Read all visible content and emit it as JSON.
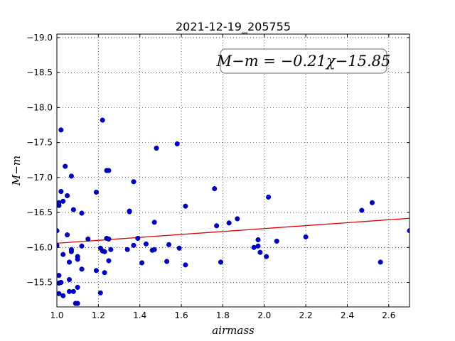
{
  "chart_data": {
    "type": "scatter",
    "title": "2021-12-19_205755",
    "xlabel": "airmass",
    "ylabel": "M−m",
    "xlim": [
      1.0,
      2.7
    ],
    "ylim": [
      -19.05,
      -15.15
    ],
    "y_inverted": true,
    "grid": true,
    "x_ticks": [
      1.0,
      1.2,
      1.4,
      1.6,
      1.8,
      2.0,
      2.2,
      2.4,
      2.6
    ],
    "x_tick_labels": [
      "1.0",
      "1.2",
      "1.4",
      "1.6",
      "1.8",
      "2.0",
      "2.2",
      "2.4",
      "2.6"
    ],
    "y_ticks": [
      -15.5,
      -16.0,
      -16.5,
      -17.0,
      -17.5,
      -18.0,
      -18.5,
      -19.0
    ],
    "y_tick_labels": [
      "−15.5",
      "−16.0",
      "−16.5",
      "−17.0",
      "−17.5",
      "−18.0",
      "−18.5",
      "−19.0"
    ],
    "annotation": "M−m = −0.21χ−15.85",
    "point_color": "#0000cc",
    "fit_color": "#dd0000",
    "fit_line": {
      "slope": -0.21,
      "intercept": -15.85,
      "x_range": [
        1.0,
        2.7
      ]
    },
    "points": [
      [
        1.0,
        -16.03
      ],
      [
        1.0,
        -16.24
      ],
      [
        1.01,
        -15.34
      ],
      [
        1.01,
        -15.49
      ],
      [
        1.01,
        -15.6
      ],
      [
        1.01,
        -16.6
      ],
      [
        1.01,
        -16.64
      ],
      [
        1.02,
        -16.8
      ],
      [
        1.02,
        -17.68
      ],
      [
        1.02,
        -15.5
      ],
      [
        1.03,
        -15.9
      ],
      [
        1.03,
        -15.31
      ],
      [
        1.03,
        -16.66
      ],
      [
        1.04,
        -17.16
      ],
      [
        1.05,
        -16.18
      ],
      [
        1.05,
        -16.74
      ],
      [
        1.06,
        -15.37
      ],
      [
        1.06,
        -15.54
      ],
      [
        1.06,
        -15.79
      ],
      [
        1.07,
        -15.94
      ],
      [
        1.07,
        -15.97
      ],
      [
        1.07,
        -17.02
      ],
      [
        1.08,
        -15.37
      ],
      [
        1.08,
        -16.54
      ],
      [
        1.09,
        -15.2
      ],
      [
        1.1,
        -15.2
      ],
      [
        1.1,
        -15.43
      ],
      [
        1.1,
        -15.87
      ],
      [
        1.1,
        -15.83
      ],
      [
        1.12,
        -15.69
      ],
      [
        1.12,
        -16.02
      ],
      [
        1.12,
        -16.49
      ],
      [
        1.15,
        -16.12
      ],
      [
        1.19,
        -15.67
      ],
      [
        1.19,
        -16.79
      ],
      [
        1.21,
        -15.35
      ],
      [
        1.21,
        -15.99
      ],
      [
        1.22,
        -15.95
      ],
      [
        1.22,
        -17.82
      ],
      [
        1.23,
        -15.64
      ],
      [
        1.23,
        -15.94
      ],
      [
        1.24,
        -17.1
      ],
      [
        1.24,
        -16.13
      ],
      [
        1.25,
        -16.12
      ],
      [
        1.25,
        -15.81
      ],
      [
        1.25,
        -17.1
      ],
      [
        1.26,
        -15.97
      ],
      [
        1.34,
        -15.97
      ],
      [
        1.35,
        -16.51
      ],
      [
        1.35,
        -16.52
      ],
      [
        1.37,
        -16.03
      ],
      [
        1.37,
        -16.94
      ],
      [
        1.39,
        -16.13
      ],
      [
        1.41,
        -15.78
      ],
      [
        1.43,
        -16.05
      ],
      [
        1.46,
        -15.96
      ],
      [
        1.47,
        -15.97
      ],
      [
        1.47,
        -16.36
      ],
      [
        1.48,
        -17.42
      ],
      [
        1.53,
        -15.8
      ],
      [
        1.54,
        -16.04
      ],
      [
        1.58,
        -17.48
      ],
      [
        1.59,
        -15.99
      ],
      [
        1.62,
        -16.59
      ],
      [
        1.62,
        -15.75
      ],
      [
        1.76,
        -16.84
      ],
      [
        1.77,
        -16.31
      ],
      [
        1.79,
        -15.79
      ],
      [
        1.83,
        -16.35
      ],
      [
        1.87,
        -16.41
      ],
      [
        1.95,
        -16.0
      ],
      [
        1.97,
        -16.11
      ],
      [
        1.97,
        -16.02
      ],
      [
        1.98,
        -15.93
      ],
      [
        2.01,
        -15.87
      ],
      [
        2.02,
        -16.72
      ],
      [
        2.06,
        -16.09
      ],
      [
        2.2,
        -16.15
      ],
      [
        2.47,
        -16.53
      ],
      [
        2.52,
        -16.64
      ],
      [
        2.56,
        -15.79
      ],
      [
        2.7,
        -16.24
      ]
    ]
  }
}
